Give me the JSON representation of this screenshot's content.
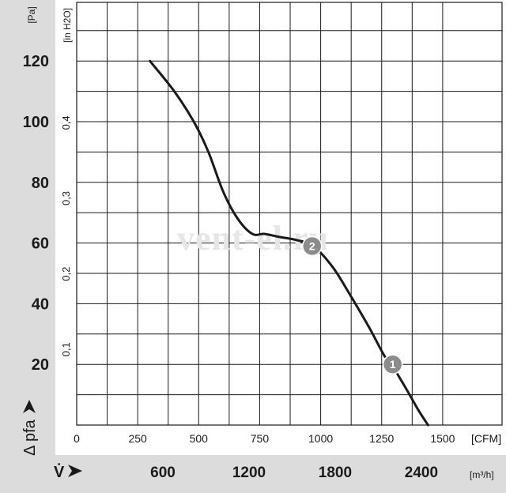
{
  "chart_data": {
    "type": "line",
    "title": "",
    "units": {
      "pressure_pa": "[Pa]",
      "pressure_inh2o": "[in H2O]",
      "flow_cfm": "[CFM]",
      "flow_m3h": "[m³/h]"
    },
    "ylabel": "Δ pfa",
    "xlabel": "V̇",
    "y_pa_ticks": [
      "20",
      "40",
      "60",
      "80",
      "100",
      "120"
    ],
    "y_inh2o_ticks": [
      "0,1",
      "0,2",
      "0,3",
      "0,4"
    ],
    "x_cfm_ticks": [
      "0",
      "250",
      "500",
      "750",
      "1000",
      "1250",
      "1500"
    ],
    "x_m3h_ticks": [
      "600",
      "1200",
      "1800",
      "2400"
    ],
    "xlim_cfm": [
      0,
      1570
    ],
    "ylim_pa": [
      0,
      130
    ],
    "grid": true,
    "series": [
      {
        "x": [
          300,
          400,
          480,
          540,
          600,
          660,
          720,
          770,
          830,
          900,
          970,
          1050,
          1120,
          1200,
          1260,
          1290,
          1350,
          1400,
          1440
        ],
        "y": [
          120,
          110,
          100,
          90,
          77,
          68,
          63,
          63,
          62,
          61,
          59,
          52,
          43,
          32,
          23,
          20,
          12,
          5,
          0
        ]
      }
    ],
    "annotations": [
      {
        "label": "1",
        "x": 1295,
        "y": 20
      },
      {
        "label": "2",
        "x": 965,
        "y": 59
      }
    ],
    "watermark": "vent-el.ru"
  }
}
